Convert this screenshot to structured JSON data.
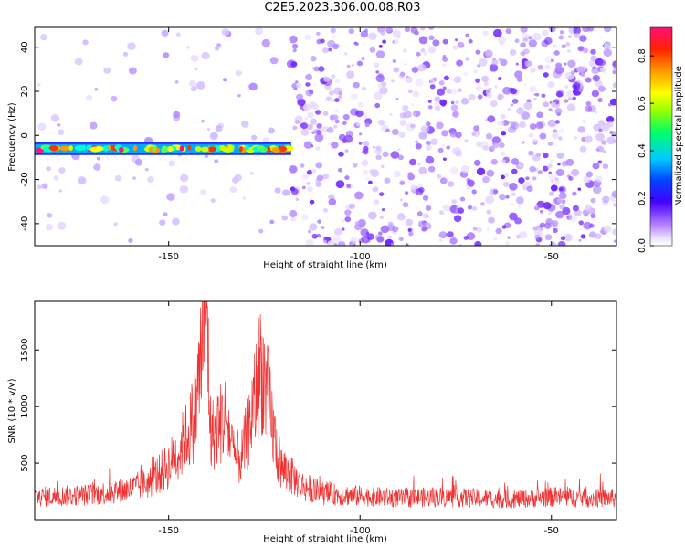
{
  "title": "C2E5.2023.306.00.08.R03",
  "chart_data": [
    {
      "type": "heatmap",
      "xlabel": "Height of straight line (km)",
      "ylabel": "Frequency (Hz)",
      "xlim": [
        -185,
        -33
      ],
      "ylim": [
        -50,
        49
      ],
      "xticks": [
        -150,
        -100,
        -50
      ],
      "yticks": [
        -40,
        -20,
        0,
        20,
        40
      ],
      "colorbar": {
        "label": "Normalized spectral amplitude",
        "range": [
          0,
          0.92
        ],
        "ticks": [
          0.0,
          0.2,
          0.4,
          0.6,
          0.8
        ]
      },
      "signal_band": {
        "x_range": [
          -185,
          -118
        ],
        "frequency": -6,
        "peak_amplitude": 0.9
      },
      "notes": [
        "noise speckles"
      ]
    },
    {
      "type": "line",
      "xlabel": "Height of straight line (km)",
      "ylabel": "SNR (10 * v/v)",
      "xlim": [
        -185,
        -33
      ],
      "ylim": [
        0,
        1930
      ],
      "xticks": [
        -150,
        -100,
        -50
      ],
      "yticks": [
        500,
        1000,
        1500
      ],
      "series": [
        {
          "color": "#ee3333",
          "x": [
            -185,
            -170,
            -160,
            -155,
            -150,
            -147,
            -145,
            -143,
            -141.5,
            -140.5,
            -140,
            -139,
            -137,
            -135,
            -133,
            -131,
            -129,
            -127,
            -126,
            -125,
            -123,
            -121,
            -118,
            -115,
            -110,
            -100,
            -90,
            -80,
            -70,
            -60,
            -50,
            -40,
            -33
          ],
          "y": [
            200,
            220,
            270,
            330,
            480,
            620,
            760,
            950,
            1450,
            1930,
            1800,
            720,
            840,
            910,
            560,
            540,
            820,
            1150,
            1390,
            1240,
            850,
            470,
            390,
            300,
            230,
            210,
            190,
            200,
            190,
            180,
            200,
            190,
            190
          ]
        }
      ]
    }
  ]
}
